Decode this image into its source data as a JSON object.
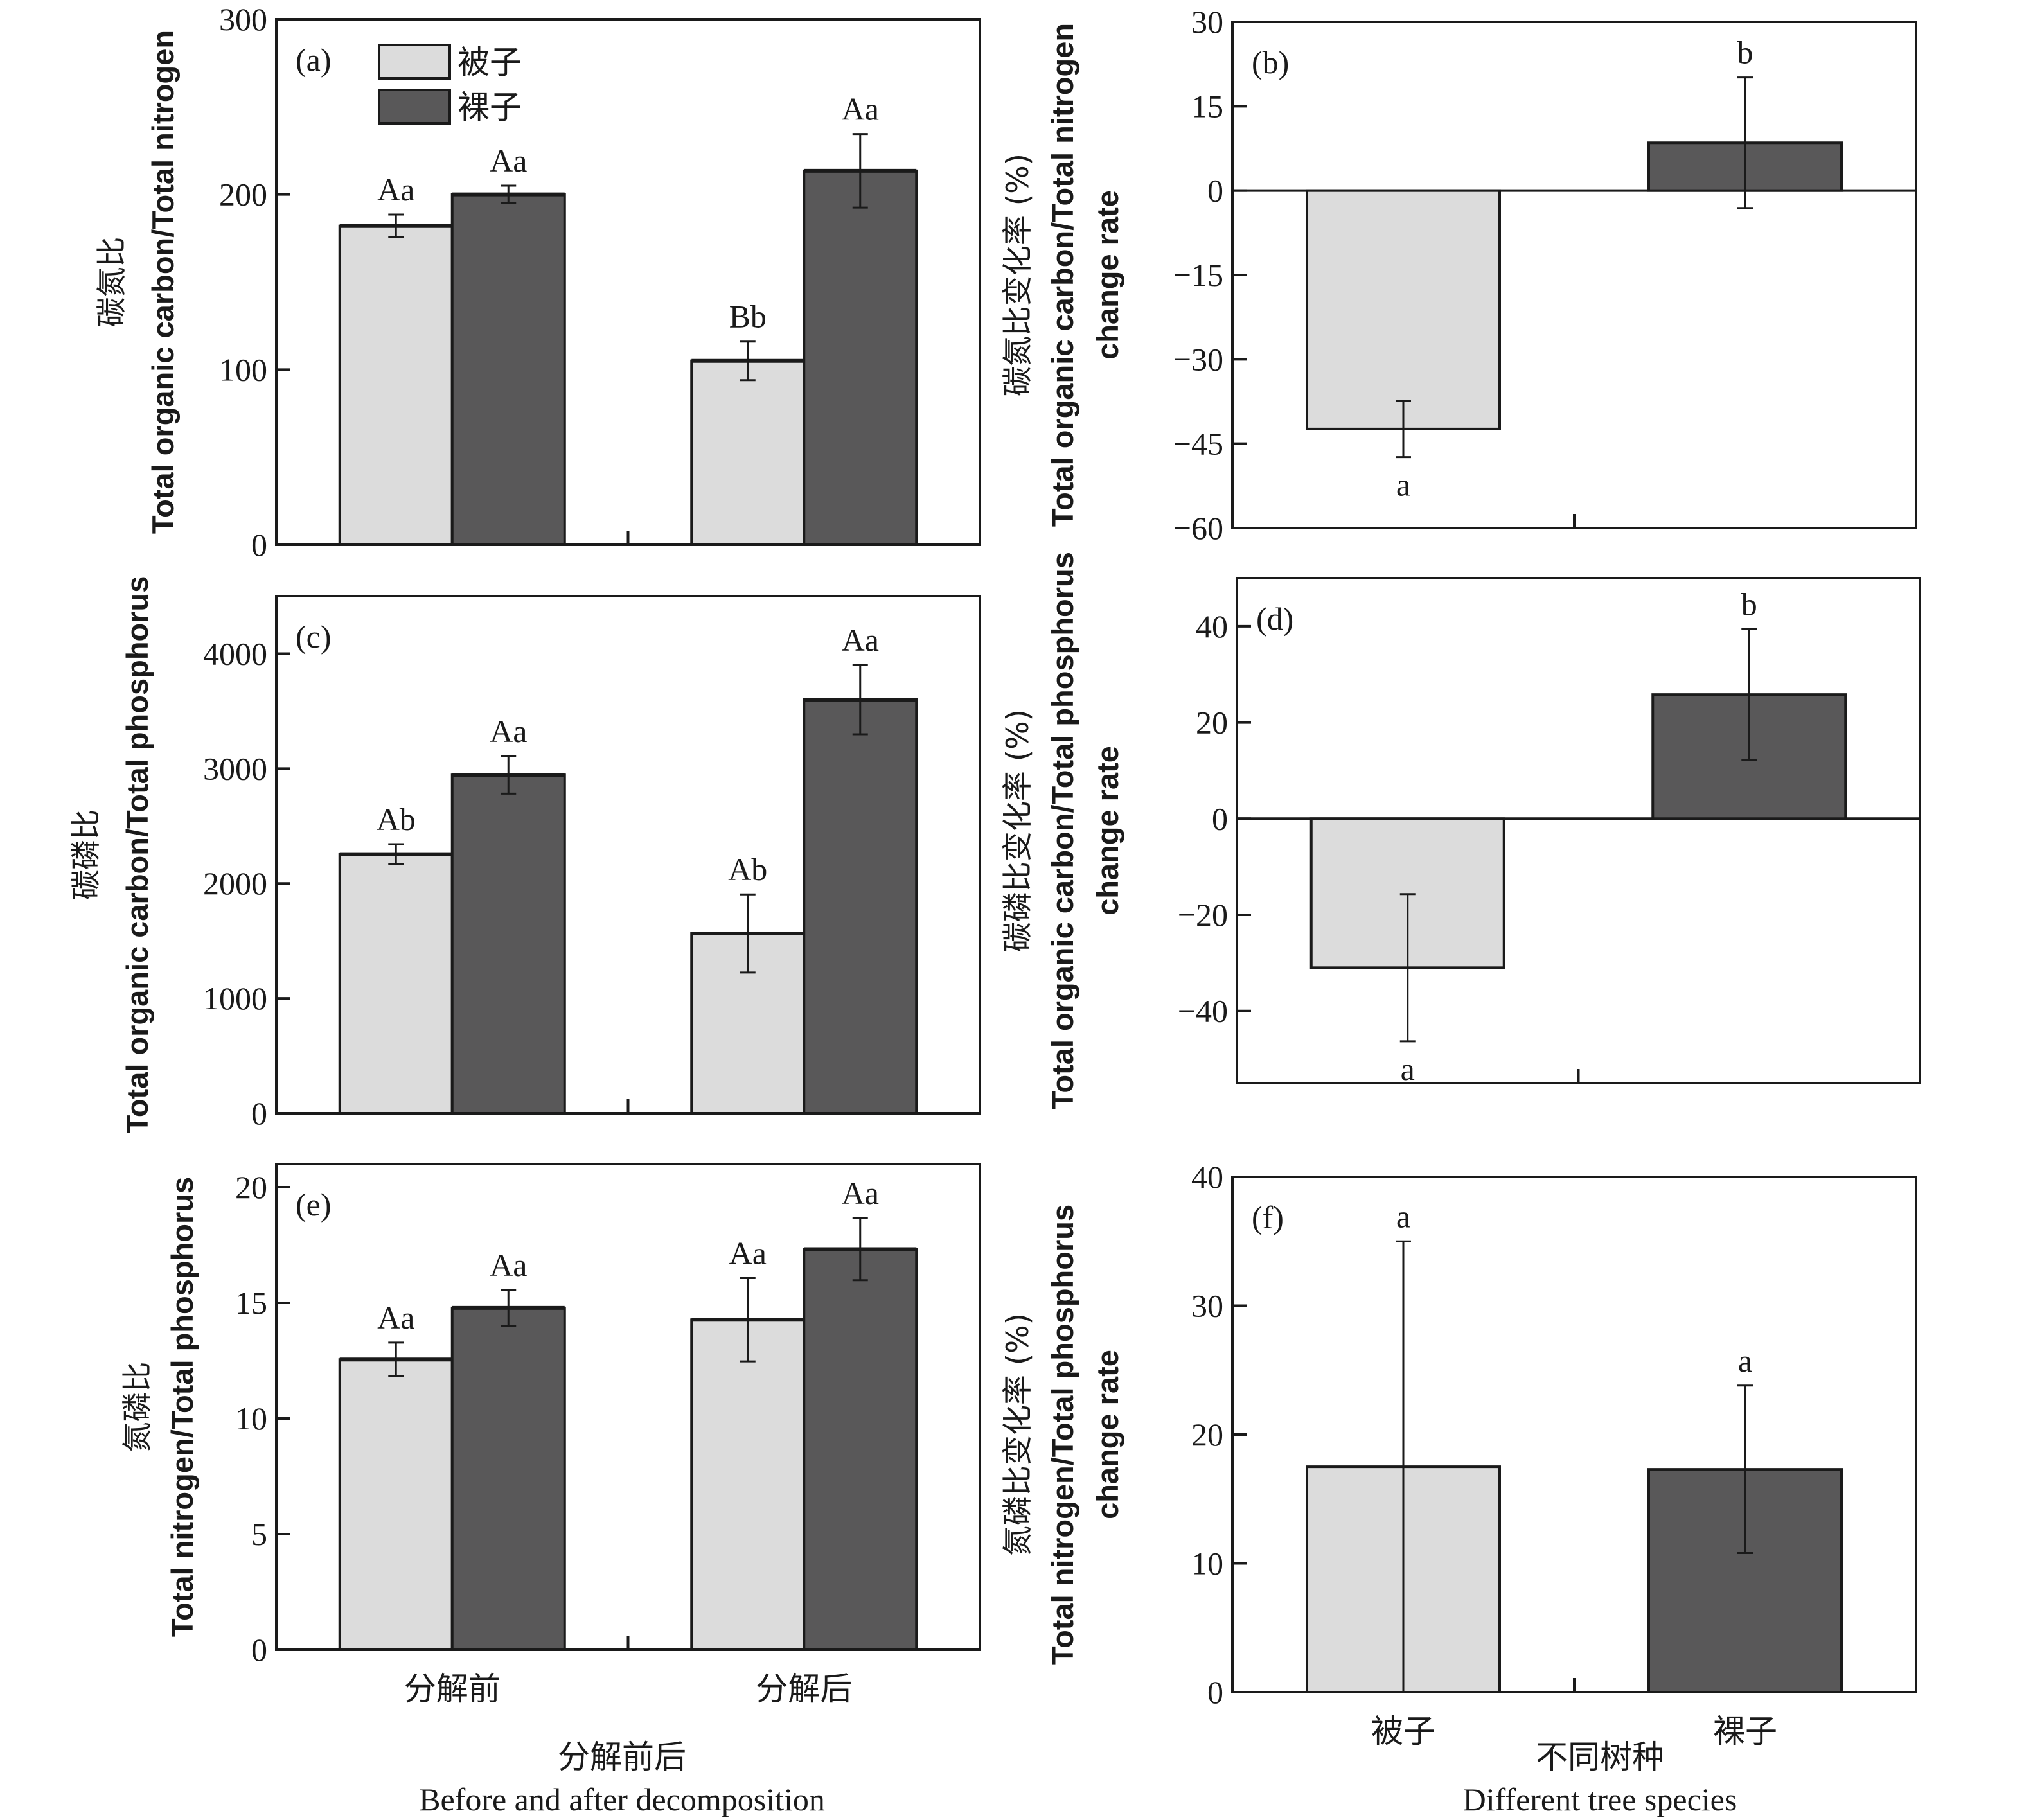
{
  "colors": {
    "angiosperm": "#dcdcdc",
    "gymnosperm": "#595859",
    "axis": "#1a1a1a"
  },
  "legend": {
    "items": [
      {
        "label": "被子",
        "series": "angiosperm"
      },
      {
        "label": "裸子",
        "series": "gymnosperm"
      }
    ]
  },
  "x_titles": {
    "left": {
      "zh": "分解前后",
      "en": "Before and after decomposition"
    },
    "right": {
      "zh": "不同树种",
      "en": "Different tree species"
    }
  },
  "chart_data": [
    {
      "id": "a",
      "type": "bar",
      "panel_label": "(a)",
      "ylabel_zh": "碳氮比",
      "ylabel_en": [
        "Total organic carbon/Total nitrogen"
      ],
      "categories": [
        "分解前",
        "分解后"
      ],
      "show_categories": false,
      "ylim": [
        0,
        300
      ],
      "yticks": [
        0,
        100,
        200,
        300
      ],
      "series": [
        {
          "name": "被子",
          "color_key": "angiosperm",
          "values": [
            182,
            105
          ],
          "errors": [
            6.5,
            11
          ],
          "labels": [
            "Aa",
            "Bb"
          ]
        },
        {
          "name": "裸子",
          "color_key": "gymnosperm",
          "values": [
            200,
            213.5
          ],
          "errors": [
            5,
            21
          ],
          "labels": [
            "Aa",
            "Aa"
          ]
        }
      ],
      "legend": "top-left"
    },
    {
      "id": "b",
      "type": "bar",
      "panel_label": "(b)",
      "ylabel_zh": "碳氮比变化率 (%)",
      "ylabel_en": [
        "Total organic carbon/Total nitrogen",
        "change rate"
      ],
      "categories": [
        "被子",
        "裸子"
      ],
      "show_categories": false,
      "ylim": [
        -60,
        30
      ],
      "yticks": [
        -60,
        -45,
        -30,
        -15,
        0,
        15,
        30
      ],
      "series": [
        {
          "name": "change rate",
          "values": [
            -42.4,
            8.5
          ],
          "errors": [
            5,
            11.6
          ],
          "labels": [
            "a",
            "b"
          ],
          "color_keys": [
            "angiosperm",
            "gymnosperm"
          ]
        }
      ]
    },
    {
      "id": "c",
      "type": "bar",
      "panel_label": "(c)",
      "ylabel_zh": "碳磷比",
      "ylabel_en": [
        "Total organic carbon/Total phosphorus"
      ],
      "categories": [
        "分解前",
        "分解后"
      ],
      "show_categories": false,
      "ylim": [
        0,
        4500
      ],
      "yticks": [
        0,
        1000,
        2000,
        3000,
        4000
      ],
      "series": [
        {
          "name": "被子",
          "color_key": "angiosperm",
          "values": [
            2255,
            1565
          ],
          "errors": [
            87,
            340
          ],
          "labels": [
            "Ab",
            "Ab"
          ]
        },
        {
          "name": "裸子",
          "color_key": "gymnosperm",
          "values": [
            2945,
            3600
          ],
          "errors": [
            163,
            302
          ],
          "labels": [
            "Aa",
            "Aa"
          ]
        }
      ]
    },
    {
      "id": "d",
      "type": "bar",
      "panel_label": "(d)",
      "ylabel_zh": "碳磷比变化率 (%)",
      "ylabel_en": [
        "Total organic carbon/Total phosphorus",
        "change rate"
      ],
      "categories": [
        "被子",
        "裸子"
      ],
      "show_categories": false,
      "ylim": [
        -55,
        50
      ],
      "yticks": [
        -40,
        -20,
        0,
        20,
        40
      ],
      "series": [
        {
          "name": "change rate",
          "values": [
            -31,
            25.8
          ],
          "errors": [
            15.3,
            13.6
          ],
          "labels": [
            "a",
            "b"
          ],
          "color_keys": [
            "angiosperm",
            "gymnosperm"
          ]
        }
      ]
    },
    {
      "id": "e",
      "type": "bar",
      "panel_label": "(e)",
      "ylabel_zh": "氮磷比",
      "ylabel_en": [
        "Total nitrogen/Total phosphorus"
      ],
      "categories": [
        "分解前",
        "分解后"
      ],
      "show_categories": true,
      "ylim": [
        0,
        21
      ],
      "yticks": [
        0,
        5,
        10,
        15,
        20
      ],
      "series": [
        {
          "name": "被子",
          "color_key": "angiosperm",
          "values": [
            12.55,
            14.27
          ],
          "errors": [
            0.73,
            1.8
          ],
          "labels": [
            "Aa",
            "Aa"
          ]
        },
        {
          "name": "裸子",
          "color_key": "gymnosperm",
          "values": [
            14.78,
            17.32
          ],
          "errors": [
            0.78,
            1.34
          ],
          "labels": [
            "Aa",
            "Aa"
          ]
        }
      ]
    },
    {
      "id": "f",
      "type": "bar",
      "panel_label": "(f)",
      "ylabel_zh": "氮磷比变化率 (%)",
      "ylabel_en": [
        "Total nitrogen/Total phosphorus",
        "change rate"
      ],
      "categories": [
        "被子",
        "裸子"
      ],
      "show_categories": true,
      "ylim": [
        0,
        40
      ],
      "yticks": [
        0,
        10,
        20,
        30,
        40
      ],
      "series": [
        {
          "name": "change rate",
          "values": [
            17.5,
            17.3
          ],
          "errors": [
            17.5,
            6.5
          ],
          "labels": [
            "a",
            "a"
          ],
          "color_keys": [
            "angiosperm",
            "gymnosperm"
          ]
        }
      ]
    }
  ]
}
